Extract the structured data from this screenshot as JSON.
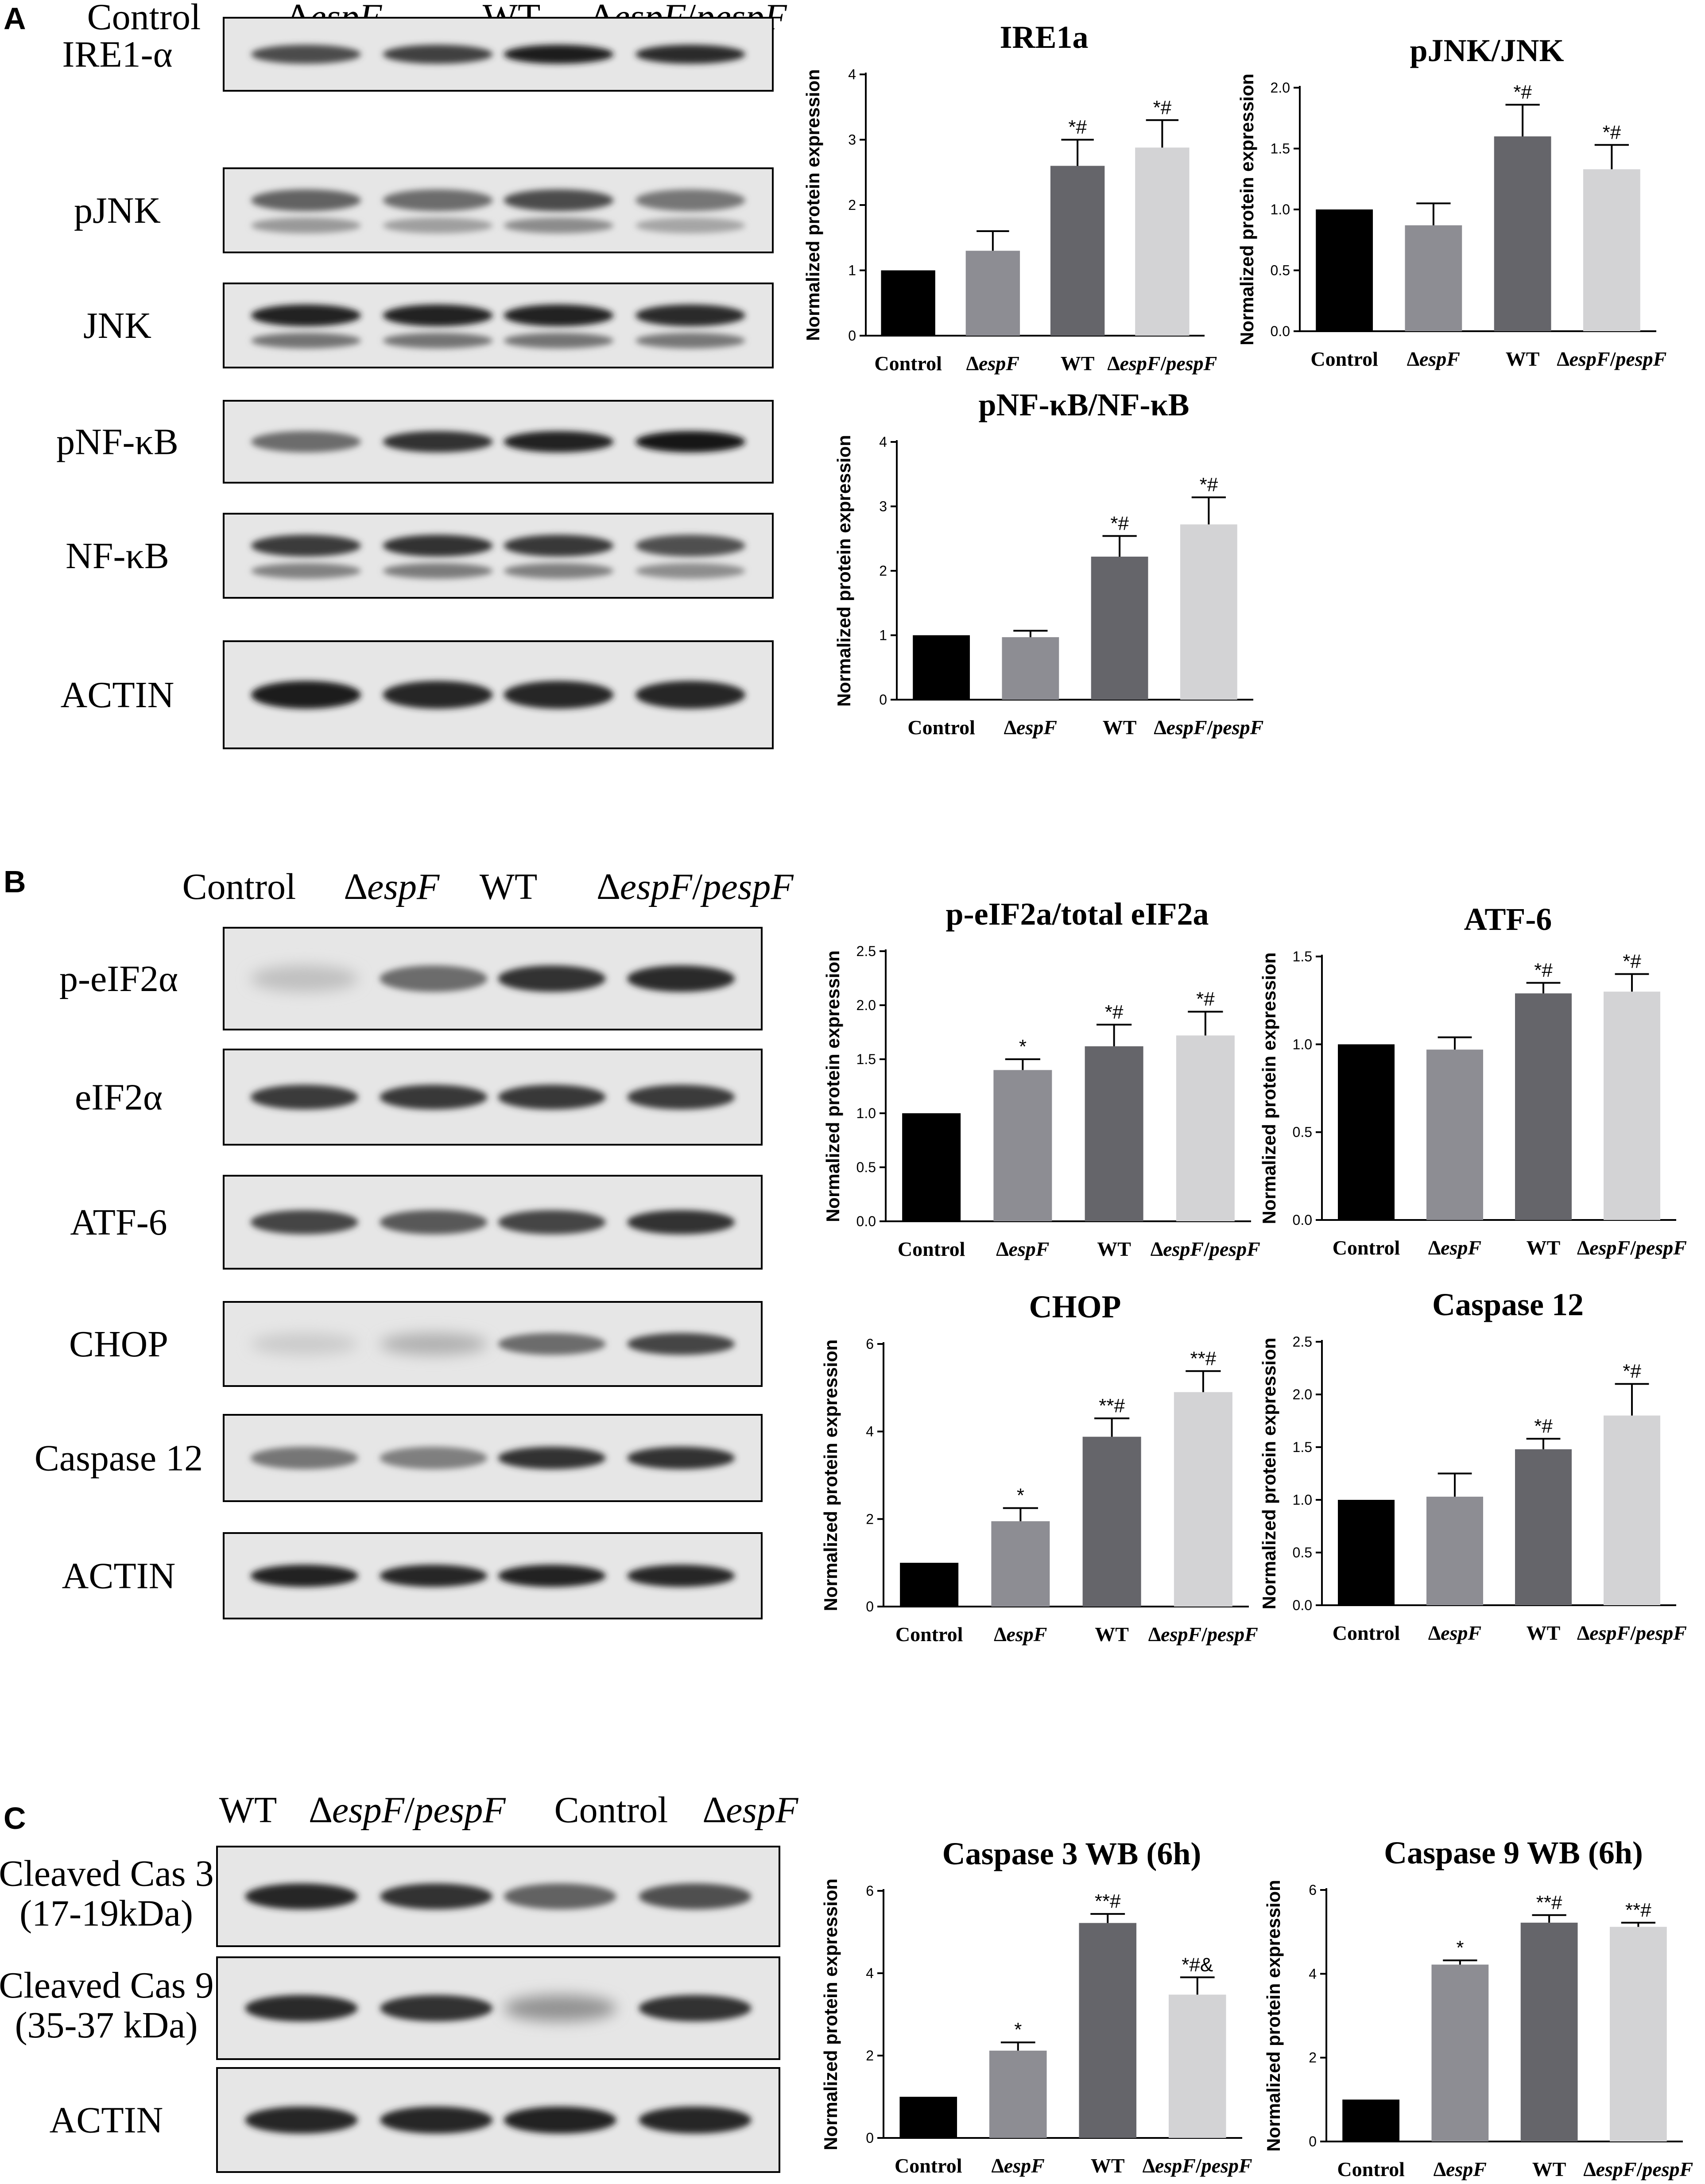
{
  "colors": {
    "bar1": "#000000",
    "bar2": "#8d8d93",
    "bar3": "#65656a",
    "bar4": "#d3d3d5"
  },
  "panels": [
    {
      "letter": "A",
      "blots": {
        "lanes": [
          "Control",
          "∆espF",
          "WT",
          "∆espF/pespF"
        ],
        "rows": [
          {
            "label": "IRE1-α",
            "intensity": [
              0.72,
              0.78,
              0.95,
              0.88
            ]
          },
          {
            "label": "pJNK",
            "intensity": [
              0.6,
              0.55,
              0.72,
              0.5
            ]
          },
          {
            "label": "JNK",
            "intensity": [
              0.92,
              0.92,
              0.92,
              0.88
            ]
          },
          {
            "label": "pNF-κB",
            "intensity": [
              0.55,
              0.85,
              0.92,
              0.98
            ]
          },
          {
            "label": "NF-κB",
            "intensity": [
              0.8,
              0.85,
              0.82,
              0.7
            ]
          },
          {
            "label": "ACTIN",
            "intensity": [
              0.95,
              0.9,
              0.9,
              0.9
            ]
          }
        ]
      }
    },
    {
      "letter": "B",
      "blots": {
        "lanes": [
          "Control",
          "∆espF",
          "WT",
          "∆espF/pespF"
        ],
        "rows": [
          {
            "label": "p-eIF2α",
            "intensity": [
              0.12,
              0.55,
              0.85,
              0.88
            ]
          },
          {
            "label": "eIF2α",
            "intensity": [
              0.8,
              0.82,
              0.82,
              0.8
            ]
          },
          {
            "label": "ATF-6",
            "intensity": [
              0.75,
              0.65,
              0.75,
              0.85
            ]
          },
          {
            "label": "CHOP",
            "intensity": [
              0.06,
              0.2,
              0.55,
              0.75
            ]
          },
          {
            "label": "Caspase 12",
            "intensity": [
              0.5,
              0.45,
              0.85,
              0.85
            ]
          },
          {
            "label": "ACTIN",
            "intensity": [
              0.92,
              0.9,
              0.92,
              0.9
            ]
          }
        ]
      }
    },
    {
      "letter": "C",
      "blots": {
        "lanes": [
          "WT",
          "∆espF/pespF",
          "Control",
          "∆espF"
        ],
        "rows": [
          {
            "label": "Cleaved Cas 3",
            "sublabel": "(17-19kDa)",
            "intensity": [
              0.9,
              0.85,
              0.6,
              0.7
            ]
          },
          {
            "label": "Cleaved Cas 9",
            "sublabel": "(35-37 kDa)",
            "intensity": [
              0.88,
              0.85,
              0.35,
              0.85
            ]
          },
          {
            "label": "ACTIN",
            "intensity": [
              0.9,
              0.9,
              0.92,
              0.9
            ]
          }
        ]
      }
    }
  ],
  "chart_data": [
    {
      "type": "bar",
      "title": "IRE1a",
      "ylabel": "Normalized protein expression",
      "categories": [
        "Control",
        "∆espF",
        "WT",
        "∆espF/pespF"
      ],
      "values": [
        1.0,
        1.3,
        2.6,
        2.88
      ],
      "errors": [
        0,
        0.3,
        0.4,
        0.42
      ],
      "significance": [
        "",
        "",
        "*#",
        "*#"
      ],
      "ylim": [
        0,
        4
      ],
      "yticks": [
        "0",
        "1",
        "2",
        "3",
        "4"
      ]
    },
    {
      "type": "bar",
      "title": "pJNK/JNK",
      "ylabel": "Normalized protein expression",
      "categories": [
        "Control",
        "∆espF",
        "WT",
        "∆espF/pespF"
      ],
      "values": [
        1.0,
        0.87,
        1.6,
        1.33
      ],
      "errors": [
        0,
        0.18,
        0.26,
        0.2
      ],
      "significance": [
        "",
        "",
        "*#",
        "*#"
      ],
      "ylim": [
        0,
        2.0
      ],
      "yticks": [
        "0.0",
        "0.5",
        "1.0",
        "1.5",
        "2.0"
      ]
    },
    {
      "type": "bar",
      "title": "pNF-κB/NF-κB",
      "ylabel": "Normalized protein expression",
      "categories": [
        "Control",
        "∆espF",
        "WT",
        "∆espF/pespF"
      ],
      "values": [
        1.0,
        0.97,
        2.22,
        2.72
      ],
      "errors": [
        0,
        0.1,
        0.32,
        0.42
      ],
      "significance": [
        "",
        "",
        "*#",
        "*#"
      ],
      "ylim": [
        0,
        4
      ],
      "yticks": [
        "0",
        "1",
        "2",
        "3",
        "4"
      ]
    },
    {
      "type": "bar",
      "title": "p-eIF2a/total eIF2a",
      "ylabel": "Normalized protein expression",
      "categories": [
        "Control",
        "∆espF",
        "WT",
        "∆espF/pespF"
      ],
      "values": [
        1.0,
        1.4,
        1.62,
        1.72
      ],
      "errors": [
        0,
        0.1,
        0.2,
        0.22
      ],
      "significance": [
        "",
        "*",
        "*#",
        "*#"
      ],
      "ylim": [
        0,
        2.5
      ],
      "yticks": [
        "0.0",
        "0.5",
        "1.0",
        "1.5",
        "2.0",
        "2.5"
      ]
    },
    {
      "type": "bar",
      "title": "ATF-6",
      "ylabel": "Normalized protein expression",
      "categories": [
        "Control",
        "∆espF",
        "WT",
        "∆espF/pespF"
      ],
      "values": [
        1.0,
        0.97,
        1.29,
        1.3
      ],
      "errors": [
        0,
        0.07,
        0.06,
        0.1
      ],
      "significance": [
        "",
        "",
        "*#",
        "*#"
      ],
      "ylim": [
        0,
        1.5
      ],
      "yticks": [
        "0.0",
        "0.5",
        "1.0",
        "1.5"
      ]
    },
    {
      "type": "bar",
      "title": "CHOP",
      "ylabel": "Normalized protein expression",
      "categories": [
        "Control",
        "∆espF",
        "WT",
        "∆espF/pespF"
      ],
      "values": [
        1.0,
        1.95,
        3.88,
        4.9
      ],
      "errors": [
        0,
        0.3,
        0.42,
        0.48
      ],
      "significance": [
        "",
        "*",
        "**#",
        "**#"
      ],
      "ylim": [
        0,
        6
      ],
      "yticks": [
        "0",
        "2",
        "4",
        "6"
      ]
    },
    {
      "type": "bar",
      "title": "Caspase 12",
      "ylabel": "Normalized protein expression",
      "categories": [
        "Control",
        "∆espF",
        "WT",
        "∆espF/pespF"
      ],
      "values": [
        1.0,
        1.03,
        1.48,
        1.8
      ],
      "errors": [
        0,
        0.22,
        0.1,
        0.3
      ],
      "significance": [
        "",
        "",
        "*#",
        "*#"
      ],
      "ylim": [
        0,
        2.5
      ],
      "yticks": [
        "0.0",
        "0.5",
        "1.0",
        "1.5",
        "2.0",
        "2.5"
      ]
    },
    {
      "type": "bar",
      "title": "Caspase 3 WB (6h)",
      "ylabel": "Normalized protein expression",
      "categories": [
        "Control",
        "∆espF",
        "WT",
        "∆espF/pespF"
      ],
      "values": [
        1.0,
        2.12,
        5.22,
        3.48
      ],
      "errors": [
        0,
        0.2,
        0.22,
        0.42
      ],
      "significance": [
        "",
        "*",
        "**#",
        "*#&"
      ],
      "ylim": [
        0,
        6
      ],
      "yticks": [
        "0",
        "2",
        "4",
        "6"
      ]
    },
    {
      "type": "bar",
      "title": "Caspase 9 WB (6h)",
      "ylabel": "Normalized protein expression",
      "categories": [
        "Control",
        "∆espF",
        "WT",
        "∆espF/pespF"
      ],
      "values": [
        1.0,
        4.22,
        5.22,
        5.12
      ],
      "errors": [
        0,
        0.1,
        0.18,
        0.1
      ],
      "significance": [
        "",
        "*",
        "**#",
        "**#"
      ],
      "ylim": [
        0,
        6
      ],
      "yticks": [
        "0",
        "2",
        "4",
        "6"
      ]
    }
  ]
}
